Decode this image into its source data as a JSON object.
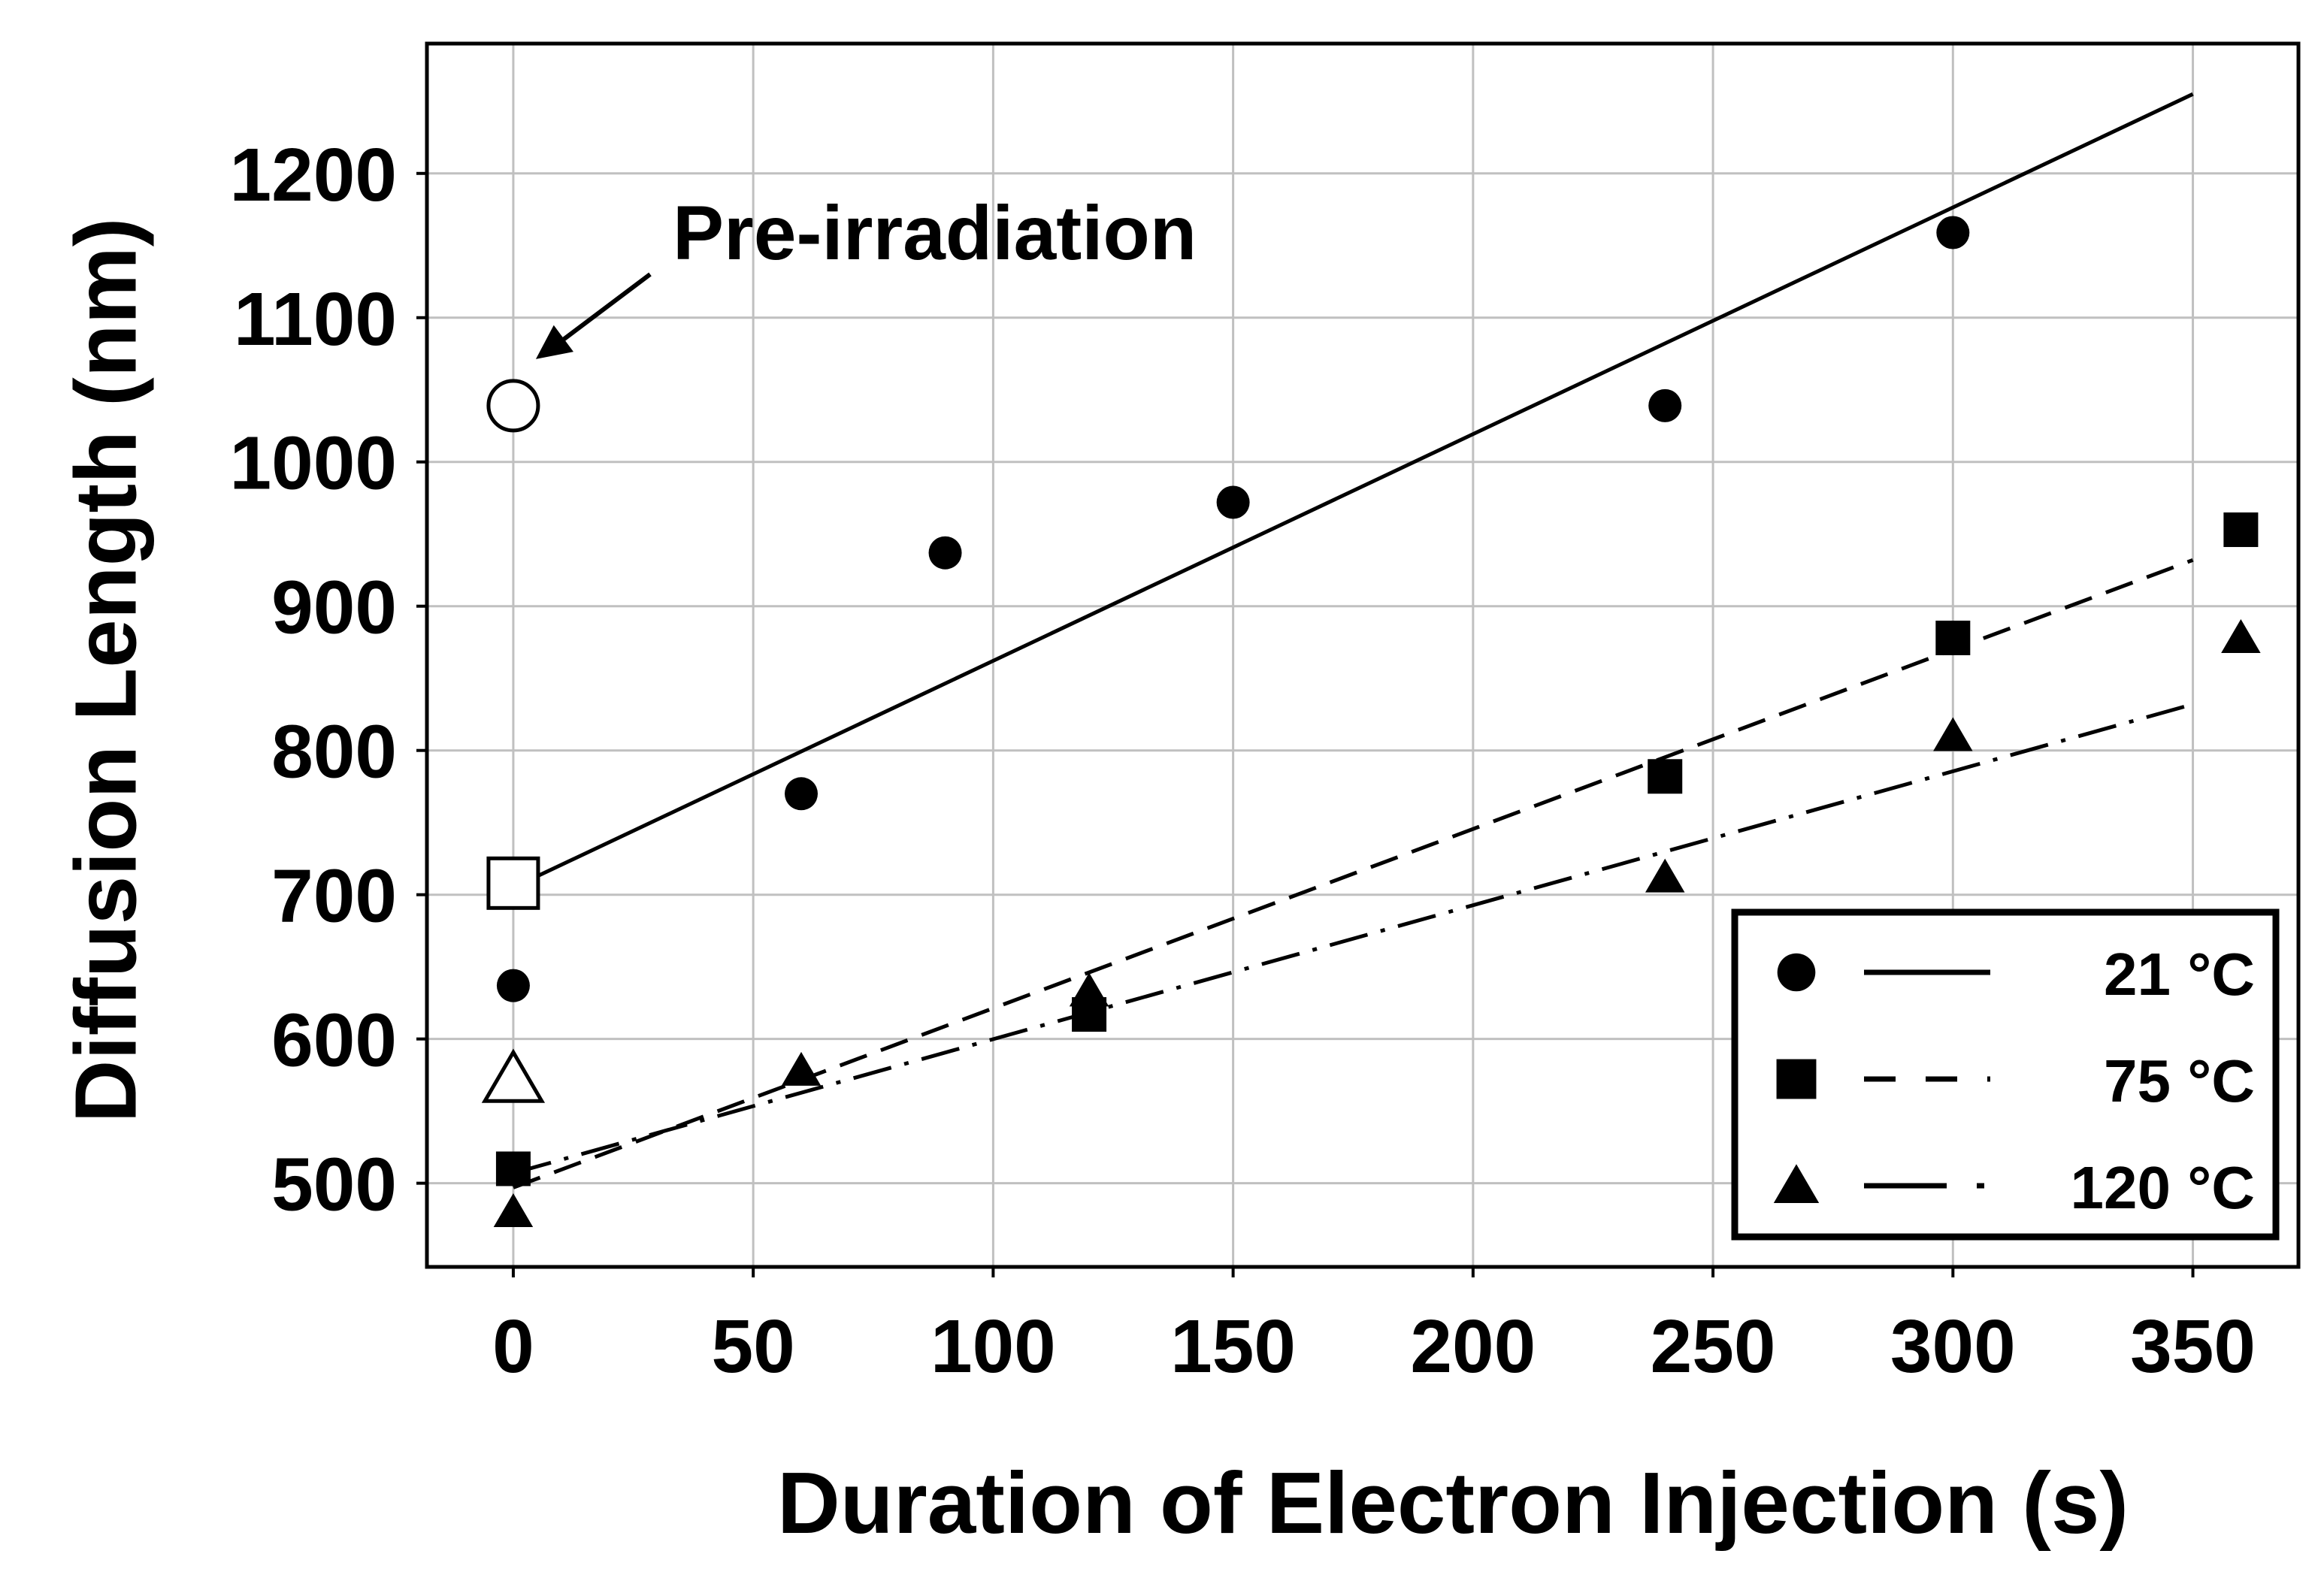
{
  "chart_data": {
    "type": "scatter",
    "title": "",
    "xlabel": "Duration of Electron Injection (s)",
    "ylabel": "Diffusion Length (nm)",
    "xlim": [
      -18,
      372
    ],
    "ylim": [
      442,
      1290
    ],
    "x_ticks": [
      0,
      50,
      100,
      150,
      200,
      250,
      300,
      350
    ],
    "y_ticks": [
      500,
      600,
      700,
      800,
      900,
      1000,
      1100,
      1200
    ],
    "grid": true,
    "legend_position": "bottom-right",
    "series": [
      {
        "name": "21 °C",
        "marker": "circle",
        "line_style": "solid",
        "points": [
          [
            0,
            637
          ],
          [
            60,
            770
          ],
          [
            90,
            937
          ],
          [
            150,
            972
          ],
          [
            240,
            1039
          ],
          [
            300,
            1159
          ]
        ],
        "fit": [
          [
            0,
            705
          ],
          [
            350,
            1255
          ]
        ]
      },
      {
        "name": "75 °C",
        "marker": "square",
        "line_style": "dashed",
        "points": [
          [
            0,
            510
          ],
          [
            120,
            617
          ],
          [
            240,
            782
          ],
          [
            300,
            878
          ],
          [
            360,
            953
          ]
        ],
        "fit": [
          [
            0,
            497
          ],
          [
            350,
            932
          ]
        ]
      },
      {
        "name": "120 °C",
        "marker": "triangle",
        "line_style": "dashdot",
        "points": [
          [
            0,
            480
          ],
          [
            60,
            578
          ],
          [
            120,
            633
          ],
          [
            240,
            712
          ],
          [
            300,
            810
          ],
          [
            360,
            878
          ]
        ],
        "fit": [
          [
            0,
            507
          ],
          [
            350,
            832
          ]
        ]
      }
    ],
    "open_markers": [
      {
        "marker": "circle",
        "x": 0,
        "y": 1039
      },
      {
        "marker": "square",
        "x": 0,
        "y": 708
      },
      {
        "marker": "triangle",
        "x": 0,
        "y": 572
      }
    ],
    "annotations": [
      {
        "text": "Pre-irradiation",
        "points_to": [
          0,
          1039
        ]
      }
    ]
  }
}
